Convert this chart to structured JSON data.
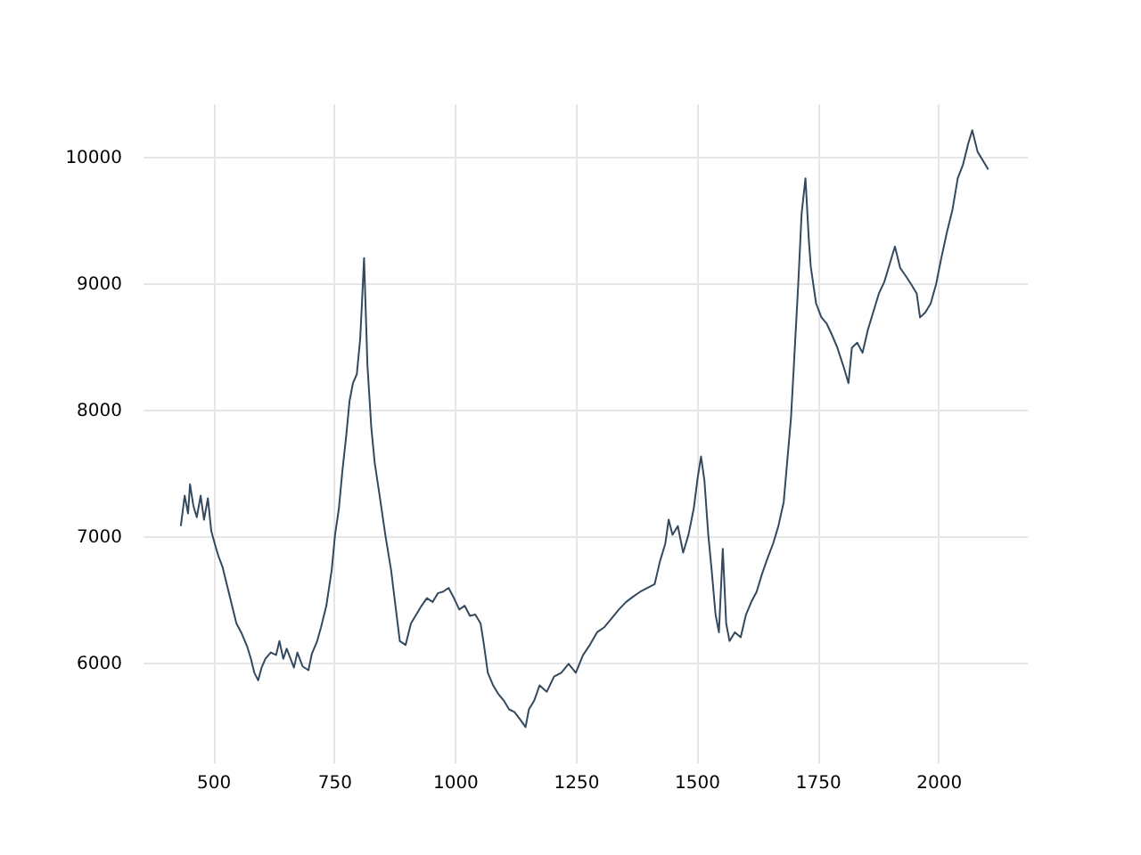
{
  "chart_data": {
    "type": "line",
    "xlim": [
      354,
      2183
    ],
    "ylim": [
      5211,
      10423
    ],
    "xticks": [
      500,
      750,
      1000,
      1250,
      1500,
      1750,
      2000
    ],
    "yticks": [
      6000,
      7000,
      8000,
      9000,
      10000
    ],
    "grid": true,
    "line_style": "solid",
    "marker": "none",
    "x": [
      433,
      441,
      448,
      452,
      459,
      466,
      474,
      481,
      489,
      496,
      504,
      511,
      519,
      530,
      537,
      548,
      559,
      570,
      578,
      585,
      593,
      600,
      608,
      619,
      630,
      637,
      645,
      652,
      660,
      667,
      674,
      685,
      697,
      704,
      715,
      723,
      734,
      745,
      752,
      760,
      767,
      775,
      782,
      789,
      797,
      804,
      808,
      812,
      819,
      827,
      834,
      845,
      856,
      868,
      875,
      886,
      898,
      909,
      920,
      931,
      942,
      954,
      965,
      975,
      987,
      998,
      1009,
      1020,
      1031,
      1042,
      1053,
      1060,
      1068,
      1079,
      1090,
      1101,
      1112,
      1123,
      1135,
      1146,
      1153,
      1164,
      1175,
      1190,
      1205,
      1220,
      1235,
      1250,
      1265,
      1279,
      1294,
      1309,
      1324,
      1339,
      1354,
      1368,
      1383,
      1398,
      1413,
      1424,
      1435,
      1442,
      1450,
      1461,
      1472,
      1483,
      1494,
      1502,
      1509,
      1516,
      1524,
      1531,
      1539,
      1546,
      1554,
      1561,
      1568,
      1579,
      1591,
      1602,
      1613,
      1624,
      1635,
      1646,
      1658,
      1669,
      1680,
      1687,
      1695,
      1702,
      1710,
      1717,
      1725,
      1728,
      1732,
      1736,
      1747,
      1758,
      1769,
      1780,
      1791,
      1803,
      1814,
      1821,
      1832,
      1843,
      1854,
      1865,
      1877,
      1888,
      1899,
      1910,
      1921,
      1932,
      1944,
      1955,
      1962,
      1973,
      1984,
      1995,
      2006,
      2018,
      2029,
      2040,
      2051,
      2062,
      2070,
      2081,
      2092,
      2103
    ],
    "series": [
      {
        "color": "#34495e",
        "values": [
          7080,
          7320,
          7180,
          7410,
          7240,
          7150,
          7320,
          7130,
          7300,
          7040,
          6930,
          6840,
          6760,
          6590,
          6480,
          6310,
          6230,
          6130,
          6030,
          5920,
          5860,
          5960,
          6030,
          6080,
          6060,
          6170,
          6030,
          6110,
          6030,
          5960,
          6080,
          5970,
          5940,
          6070,
          6170,
          6280,
          6450,
          6730,
          7010,
          7220,
          7510,
          7790,
          8070,
          8210,
          8280,
          8560,
          8870,
          9200,
          8350,
          7860,
          7580,
          7300,
          7010,
          6730,
          6510,
          6170,
          6140,
          6310,
          6380,
          6450,
          6510,
          6480,
          6550,
          6560,
          6590,
          6510,
          6420,
          6450,
          6370,
          6380,
          6310,
          6140,
          5920,
          5820,
          5750,
          5700,
          5630,
          5610,
          5550,
          5490,
          5630,
          5700,
          5820,
          5770,
          5890,
          5920,
          5990,
          5920,
          6060,
          6140,
          6240,
          6280,
          6350,
          6420,
          6480,
          6520,
          6560,
          6590,
          6620,
          6800,
          6940,
          7130,
          7010,
          7080,
          6870,
          7010,
          7220,
          7460,
          7630,
          7440,
          7010,
          6730,
          6380,
          6240,
          6900,
          6310,
          6170,
          6240,
          6200,
          6380,
          6480,
          6560,
          6700,
          6820,
          6940,
          7080,
          7270,
          7580,
          7930,
          8420,
          8990,
          9550,
          9830,
          9620,
          9340,
          9130,
          8840,
          8730,
          8680,
          8590,
          8490,
          8350,
          8210,
          8490,
          8530,
          8450,
          8630,
          8770,
          8920,
          9010,
          9150,
          9290,
          9120,
          9060,
          8990,
          8920,
          8730,
          8770,
          8840,
          8990,
          9200,
          9410,
          9580,
          9830,
          9940,
          10110,
          10210,
          10040,
          9970,
          9900
        ]
      }
    ]
  }
}
